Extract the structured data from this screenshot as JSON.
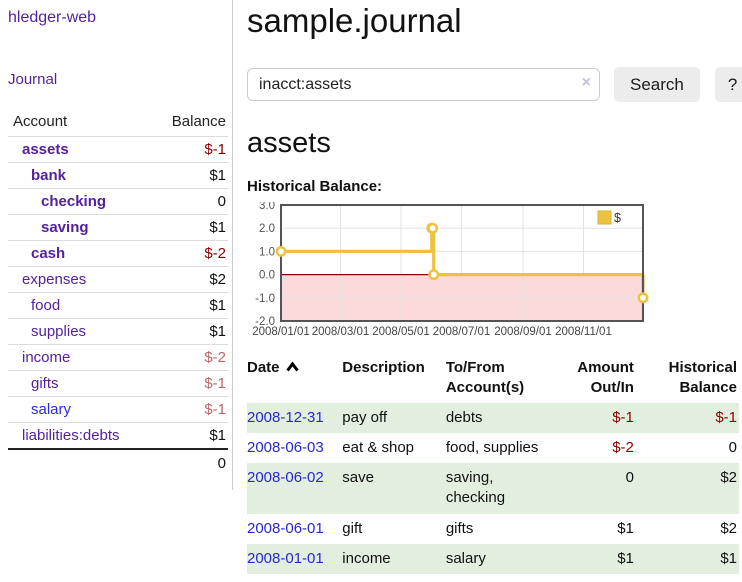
{
  "app": {
    "brand": "hledger-web"
  },
  "sidebar": {
    "journal_link": "Journal",
    "account_header": "Account",
    "balance_header": "Balance",
    "accounts": [
      {
        "name": "assets",
        "balance": "$-1"
      },
      {
        "name": "bank",
        "balance": "$1"
      },
      {
        "name": "checking",
        "balance": "0"
      },
      {
        "name": "saving",
        "balance": "$1"
      },
      {
        "name": "cash",
        "balance": "$-2"
      },
      {
        "name": "expenses",
        "balance": "$2"
      },
      {
        "name": "food",
        "balance": "$1"
      },
      {
        "name": "supplies",
        "balance": "$1"
      },
      {
        "name": "income",
        "balance": "$-2"
      },
      {
        "name": "gifts",
        "balance": "$-1"
      },
      {
        "name": "salary",
        "balance": "$-1"
      },
      {
        "name": "liabilities:debts",
        "balance": "$1"
      }
    ],
    "total": "0"
  },
  "header": {
    "title": "sample.journal"
  },
  "search": {
    "value": "inacct:assets",
    "clear_icon": "×",
    "search_button": "Search",
    "help_button": "?"
  },
  "account_page": {
    "heading": "assets",
    "chart_label": "Historical Balance:"
  },
  "chart_data": {
    "type": "line",
    "style": "step",
    "title": "Historical Balance",
    "series": [
      {
        "name": "$",
        "color": "#edc240",
        "points": [
          {
            "x": "2008-01-01",
            "y": 1
          },
          {
            "x": "2008-06-01",
            "y": 2
          },
          {
            "x": "2008-06-02",
            "y": 2
          },
          {
            "x": "2008-06-03",
            "y": 0
          },
          {
            "x": "2008-12-31",
            "y": -1
          }
        ]
      }
    ],
    "x_range": [
      "2008-01-01",
      "2008-12-31"
    ],
    "ylim": [
      -2,
      3
    ],
    "yticks": [
      "3.0",
      "2.0",
      "1.0",
      "0.0",
      "-1.0",
      "-2.0"
    ],
    "xticks": [
      {
        "label": "2008/01/01",
        "date": "2008-01-01"
      },
      {
        "label": "2008/03/01",
        "date": "2008-03-01"
      },
      {
        "label": "2008/05/01",
        "date": "2008-05-01"
      },
      {
        "label": "2008/07/01",
        "date": "2008-07-01"
      },
      {
        "label": "2008/09/01",
        "date": "2008-09-01"
      },
      {
        "label": "2008/11/01",
        "date": "2008-11-01"
      }
    ],
    "legend": {
      "label": "$",
      "position": "top-right"
    },
    "grid": true,
    "negative_region_color": "#fcdada",
    "zero_line_color": "#8b0000"
  },
  "register": {
    "columns": {
      "date": "Date",
      "description": "Description",
      "accounts": "To/From\nAccount(s)",
      "amount": "Amount\nOut/In",
      "balance": "Historical\nBalance"
    },
    "rows": [
      {
        "date": "2008-12-31",
        "description": "pay off",
        "accounts": "debts",
        "amount": "$-1",
        "balance": "$-1"
      },
      {
        "date": "2008-06-03",
        "description": "eat & shop",
        "accounts": "food, supplies",
        "amount": "$-2",
        "balance": "0"
      },
      {
        "date": "2008-06-02",
        "description": "save",
        "accounts": "saving,\nchecking",
        "amount": "0",
        "balance": "$2"
      },
      {
        "date": "2008-06-01",
        "description": "gift",
        "accounts": "gifts",
        "amount": "$1",
        "balance": "$2"
      },
      {
        "date": "2008-01-01",
        "description": "income",
        "accounts": "salary",
        "amount": "$1",
        "balance": "$1"
      }
    ]
  },
  "colors": {
    "link_purple": "#55229b",
    "link_blue": "#2a2ae0",
    "date_link_blue": "#2828cc",
    "negative_dark_red": "#8b0000",
    "negative_light_red": "#b46a6a",
    "row_stripe_green": "#e2efdf",
    "chart_line_yellow": "#edc240",
    "chart_negative_pink": "#fcdada",
    "chart_zero_line": "#8b0000",
    "chart_border_gray": "#545454",
    "button_gray": "#ececec"
  }
}
